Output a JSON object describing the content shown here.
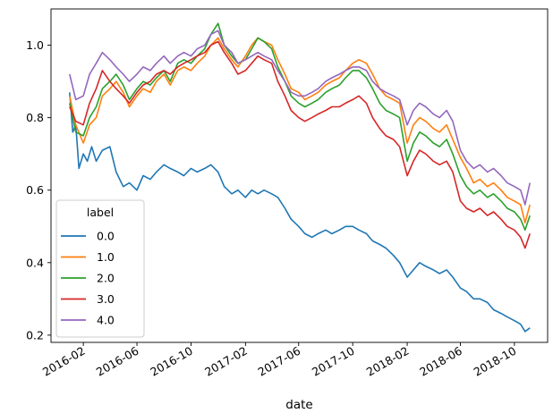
{
  "chart_data": {
    "type": "line",
    "xlabel": "date",
    "ylabel": "",
    "x_tick_labels": [
      "2016-02",
      "2016-06",
      "2016-10",
      "2017-02",
      "2017-06",
      "2017-10",
      "2018-02",
      "2018-06",
      "2018-10"
    ],
    "y_tick_labels": [
      "0.2",
      "0.4",
      "0.6",
      "0.8",
      "1.0"
    ],
    "xlim": [
      "2015-11-20",
      "2018-12-15"
    ],
    "ylim": [
      0.18,
      1.1
    ],
    "legend": {
      "title": "label",
      "placement": "lower-left"
    },
    "series": [
      {
        "name": "0.0",
        "color": "#1f77b4",
        "x": [
          "2016-01-01",
          "2016-01-08",
          "2016-01-15",
          "2016-01-22",
          "2016-02-01",
          "2016-02-10",
          "2016-02-20",
          "2016-03-01",
          "2016-03-15",
          "2016-04-01",
          "2016-04-15",
          "2016-05-01",
          "2016-05-15",
          "2016-06-01",
          "2016-06-15",
          "2016-07-01",
          "2016-07-15",
          "2016-08-01",
          "2016-08-15",
          "2016-09-01",
          "2016-09-15",
          "2016-10-01",
          "2016-10-15",
          "2016-11-01",
          "2016-11-15",
          "2016-12-01",
          "2016-12-15",
          "2017-01-01",
          "2017-01-15",
          "2017-02-01",
          "2017-02-15",
          "2017-03-01",
          "2017-03-15",
          "2017-04-01",
          "2017-04-15",
          "2017-05-01",
          "2017-05-15",
          "2017-06-01",
          "2017-06-15",
          "2017-07-01",
          "2017-07-15",
          "2017-08-01",
          "2017-08-15",
          "2017-09-01",
          "2017-09-15",
          "2017-10-01",
          "2017-10-15",
          "2017-11-01",
          "2017-11-15",
          "2017-12-01",
          "2017-12-15",
          "2018-01-01",
          "2018-01-15",
          "2018-02-01",
          "2018-02-15",
          "2018-03-01",
          "2018-03-15",
          "2018-04-01",
          "2018-04-15",
          "2018-05-01",
          "2018-05-15",
          "2018-06-01",
          "2018-06-15",
          "2018-07-01",
          "2018-07-15",
          "2018-08-01",
          "2018-08-15",
          "2018-09-01",
          "2018-09-15",
          "2018-10-01",
          "2018-10-15",
          "2018-10-25",
          "2018-11-05"
        ],
        "y": [
          0.87,
          0.76,
          0.78,
          0.66,
          0.7,
          0.68,
          0.72,
          0.68,
          0.71,
          0.72,
          0.65,
          0.61,
          0.62,
          0.6,
          0.64,
          0.63,
          0.65,
          0.67,
          0.66,
          0.65,
          0.64,
          0.66,
          0.65,
          0.66,
          0.67,
          0.65,
          0.61,
          0.59,
          0.6,
          0.58,
          0.6,
          0.59,
          0.6,
          0.59,
          0.58,
          0.55,
          0.52,
          0.5,
          0.48,
          0.47,
          0.48,
          0.49,
          0.48,
          0.49,
          0.5,
          0.5,
          0.49,
          0.48,
          0.46,
          0.45,
          0.44,
          0.42,
          0.4,
          0.36,
          0.38,
          0.4,
          0.39,
          0.38,
          0.37,
          0.38,
          0.36,
          0.33,
          0.32,
          0.3,
          0.3,
          0.29,
          0.27,
          0.26,
          0.25,
          0.24,
          0.23,
          0.21,
          0.22
        ]
      },
      {
        "name": "1.0",
        "color": "#ff7f0e",
        "x": [
          "2016-01-01",
          "2016-01-15",
          "2016-02-01",
          "2016-02-15",
          "2016-03-01",
          "2016-03-15",
          "2016-04-01",
          "2016-04-15",
          "2016-05-01",
          "2016-05-15",
          "2016-06-01",
          "2016-06-15",
          "2016-07-01",
          "2016-07-15",
          "2016-08-01",
          "2016-08-15",
          "2016-09-01",
          "2016-09-15",
          "2016-10-01",
          "2016-10-15",
          "2016-11-01",
          "2016-11-15",
          "2016-12-01",
          "2016-12-15",
          "2017-01-01",
          "2017-01-15",
          "2017-02-01",
          "2017-02-15",
          "2017-03-01",
          "2017-03-15",
          "2017-04-01",
          "2017-04-15",
          "2017-05-01",
          "2017-05-15",
          "2017-06-01",
          "2017-06-15",
          "2017-07-01",
          "2017-07-15",
          "2017-08-01",
          "2017-08-15",
          "2017-09-01",
          "2017-09-15",
          "2017-10-01",
          "2017-10-15",
          "2017-11-01",
          "2017-11-15",
          "2017-12-01",
          "2017-12-15",
          "2018-01-01",
          "2018-01-15",
          "2018-02-01",
          "2018-02-15",
          "2018-03-01",
          "2018-03-15",
          "2018-04-01",
          "2018-04-15",
          "2018-05-01",
          "2018-05-15",
          "2018-06-01",
          "2018-06-15",
          "2018-07-01",
          "2018-07-15",
          "2018-08-01",
          "2018-08-15",
          "2018-09-01",
          "2018-09-15",
          "2018-10-01",
          "2018-10-15",
          "2018-10-25",
          "2018-11-05"
        ],
        "y": [
          0.86,
          0.78,
          0.73,
          0.78,
          0.8,
          0.86,
          0.88,
          0.9,
          0.87,
          0.83,
          0.86,
          0.88,
          0.87,
          0.9,
          0.92,
          0.89,
          0.93,
          0.94,
          0.93,
          0.95,
          0.97,
          1.0,
          1.02,
          0.99,
          0.96,
          0.94,
          0.97,
          1.0,
          1.02,
          1.01,
          1.0,
          0.96,
          0.92,
          0.88,
          0.87,
          0.85,
          0.86,
          0.87,
          0.89,
          0.9,
          0.91,
          0.93,
          0.95,
          0.96,
          0.95,
          0.92,
          0.88,
          0.86,
          0.85,
          0.84,
          0.73,
          0.78,
          0.8,
          0.79,
          0.77,
          0.76,
          0.78,
          0.74,
          0.69,
          0.66,
          0.62,
          0.63,
          0.61,
          0.62,
          0.6,
          0.58,
          0.57,
          0.56,
          0.51,
          0.56
        ]
      },
      {
        "name": "2.0",
        "color": "#2ca02c",
        "x": [
          "2016-01-01",
          "2016-01-15",
          "2016-02-01",
          "2016-02-15",
          "2016-03-01",
          "2016-03-15",
          "2016-04-01",
          "2016-04-15",
          "2016-05-01",
          "2016-05-15",
          "2016-06-01",
          "2016-06-15",
          "2016-07-01",
          "2016-07-15",
          "2016-08-01",
          "2016-08-15",
          "2016-09-01",
          "2016-09-15",
          "2016-10-01",
          "2016-10-15",
          "2016-11-01",
          "2016-11-15",
          "2016-12-01",
          "2016-12-15",
          "2017-01-01",
          "2017-01-15",
          "2017-02-01",
          "2017-02-15",
          "2017-03-01",
          "2017-03-15",
          "2017-04-01",
          "2017-04-15",
          "2017-05-01",
          "2017-05-15",
          "2017-06-01",
          "2017-06-15",
          "2017-07-01",
          "2017-07-15",
          "2017-08-01",
          "2017-08-15",
          "2017-09-01",
          "2017-09-15",
          "2017-10-01",
          "2017-10-15",
          "2017-11-01",
          "2017-11-15",
          "2017-12-01",
          "2017-12-15",
          "2018-01-01",
          "2018-01-15",
          "2018-02-01",
          "2018-02-15",
          "2018-03-01",
          "2018-03-15",
          "2018-04-01",
          "2018-04-15",
          "2018-05-01",
          "2018-05-15",
          "2018-06-01",
          "2018-06-15",
          "2018-07-01",
          "2018-07-15",
          "2018-08-01",
          "2018-08-15",
          "2018-09-01",
          "2018-09-15",
          "2018-10-01",
          "2018-10-15",
          "2018-10-25",
          "2018-11-05"
        ],
        "y": [
          0.84,
          0.76,
          0.75,
          0.8,
          0.83,
          0.88,
          0.9,
          0.92,
          0.89,
          0.85,
          0.88,
          0.9,
          0.89,
          0.91,
          0.93,
          0.9,
          0.95,
          0.96,
          0.95,
          0.97,
          0.99,
          1.03,
          1.06,
          1.0,
          0.97,
          0.95,
          0.96,
          0.99,
          1.02,
          1.01,
          0.99,
          0.94,
          0.9,
          0.86,
          0.84,
          0.83,
          0.84,
          0.85,
          0.87,
          0.88,
          0.89,
          0.91,
          0.93,
          0.93,
          0.91,
          0.88,
          0.84,
          0.82,
          0.81,
          0.8,
          0.68,
          0.73,
          0.76,
          0.75,
          0.73,
          0.72,
          0.74,
          0.7,
          0.64,
          0.61,
          0.59,
          0.6,
          0.58,
          0.59,
          0.57,
          0.55,
          0.54,
          0.52,
          0.49,
          0.53
        ]
      },
      {
        "name": "3.0",
        "color": "#d62728",
        "x": [
          "2016-01-01",
          "2016-01-15",
          "2016-02-01",
          "2016-02-15",
          "2016-03-01",
          "2016-03-15",
          "2016-04-01",
          "2016-04-15",
          "2016-05-01",
          "2016-05-15",
          "2016-06-01",
          "2016-06-15",
          "2016-07-01",
          "2016-07-15",
          "2016-08-01",
          "2016-08-15",
          "2016-09-01",
          "2016-09-15",
          "2016-10-01",
          "2016-10-15",
          "2016-11-01",
          "2016-11-15",
          "2016-12-01",
          "2016-12-15",
          "2017-01-01",
          "2017-01-15",
          "2017-02-01",
          "2017-02-15",
          "2017-03-01",
          "2017-03-15",
          "2017-04-01",
          "2017-04-15",
          "2017-05-01",
          "2017-05-15",
          "2017-06-01",
          "2017-06-15",
          "2017-07-01",
          "2017-07-15",
          "2017-08-01",
          "2017-08-15",
          "2017-09-01",
          "2017-09-15",
          "2017-10-01",
          "2017-10-15",
          "2017-11-01",
          "2017-11-15",
          "2017-12-01",
          "2017-12-15",
          "2018-01-01",
          "2018-01-15",
          "2018-02-01",
          "2018-02-15",
          "2018-03-01",
          "2018-03-15",
          "2018-04-01",
          "2018-04-15",
          "2018-05-01",
          "2018-05-15",
          "2018-06-01",
          "2018-06-15",
          "2018-07-01",
          "2018-07-15",
          "2018-08-01",
          "2018-08-15",
          "2018-09-01",
          "2018-09-15",
          "2018-10-01",
          "2018-10-15",
          "2018-10-25",
          "2018-11-05"
        ],
        "y": [
          0.83,
          0.79,
          0.78,
          0.84,
          0.88,
          0.93,
          0.9,
          0.88,
          0.86,
          0.84,
          0.87,
          0.89,
          0.9,
          0.92,
          0.93,
          0.92,
          0.94,
          0.95,
          0.96,
          0.97,
          0.98,
          1.0,
          1.01,
          0.98,
          0.95,
          0.92,
          0.93,
          0.95,
          0.97,
          0.96,
          0.95,
          0.9,
          0.86,
          0.82,
          0.8,
          0.79,
          0.8,
          0.81,
          0.82,
          0.83,
          0.83,
          0.84,
          0.85,
          0.86,
          0.84,
          0.8,
          0.77,
          0.75,
          0.74,
          0.72,
          0.64,
          0.68,
          0.71,
          0.7,
          0.68,
          0.67,
          0.68,
          0.65,
          0.57,
          0.55,
          0.54,
          0.55,
          0.53,
          0.54,
          0.52,
          0.5,
          0.49,
          0.47,
          0.44,
          0.48
        ]
      },
      {
        "name": "4.0",
        "color": "#9467bd",
        "x": [
          "2016-01-01",
          "2016-01-15",
          "2016-02-01",
          "2016-02-15",
          "2016-03-01",
          "2016-03-15",
          "2016-04-01",
          "2016-04-15",
          "2016-05-01",
          "2016-05-15",
          "2016-06-01",
          "2016-06-15",
          "2016-07-01",
          "2016-07-15",
          "2016-08-01",
          "2016-08-15",
          "2016-09-01",
          "2016-09-15",
          "2016-10-01",
          "2016-10-15",
          "2016-11-01",
          "2016-11-15",
          "2016-12-01",
          "2016-12-15",
          "2017-01-01",
          "2017-01-15",
          "2017-02-01",
          "2017-02-15",
          "2017-03-01",
          "2017-03-15",
          "2017-04-01",
          "2017-04-15",
          "2017-05-01",
          "2017-05-15",
          "2017-06-01",
          "2017-06-15",
          "2017-07-01",
          "2017-07-15",
          "2017-08-01",
          "2017-08-15",
          "2017-09-01",
          "2017-09-15",
          "2017-10-01",
          "2017-10-15",
          "2017-11-01",
          "2017-11-15",
          "2017-12-01",
          "2017-12-15",
          "2018-01-01",
          "2018-01-15",
          "2018-02-01",
          "2018-02-15",
          "2018-03-01",
          "2018-03-15",
          "2018-04-01",
          "2018-04-15",
          "2018-05-01",
          "2018-05-15",
          "2018-06-01",
          "2018-06-15",
          "2018-07-01",
          "2018-07-15",
          "2018-08-01",
          "2018-08-15",
          "2018-09-01",
          "2018-09-15",
          "2018-10-01",
          "2018-10-15",
          "2018-10-25",
          "2018-11-05"
        ],
        "y": [
          0.92,
          0.85,
          0.86,
          0.92,
          0.95,
          0.98,
          0.96,
          0.94,
          0.92,
          0.9,
          0.92,
          0.94,
          0.93,
          0.95,
          0.97,
          0.95,
          0.97,
          0.98,
          0.97,
          0.99,
          1.0,
          1.03,
          1.04,
          1.0,
          0.98,
          0.95,
          0.96,
          0.97,
          0.98,
          0.97,
          0.96,
          0.93,
          0.9,
          0.87,
          0.86,
          0.86,
          0.87,
          0.88,
          0.9,
          0.91,
          0.92,
          0.93,
          0.94,
          0.94,
          0.93,
          0.9,
          0.88,
          0.87,
          0.86,
          0.85,
          0.78,
          0.82,
          0.84,
          0.83,
          0.81,
          0.8,
          0.82,
          0.79,
          0.71,
          0.68,
          0.66,
          0.67,
          0.65,
          0.66,
          0.64,
          0.62,
          0.61,
          0.6,
          0.56,
          0.62
        ]
      }
    ]
  }
}
